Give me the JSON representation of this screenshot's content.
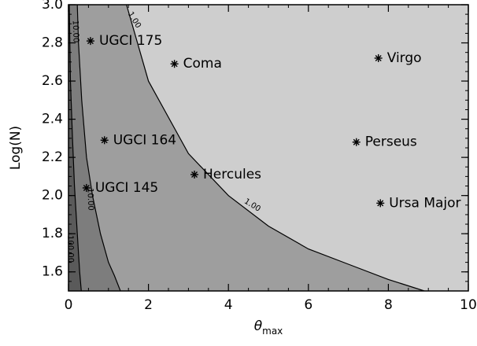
{
  "chart_data": {
    "type": "contour",
    "xlabel_symbol": "θ",
    "xlabel_subscript": "max",
    "ylabel": "Log(N)",
    "xlim": [
      0,
      10
    ],
    "ylim": [
      1.5,
      3.0
    ],
    "xticks": [
      "0",
      "2",
      "4",
      "6",
      "8",
      "10"
    ],
    "yticks": [
      "1.6",
      "1.8",
      "2.0",
      "2.2",
      "2.4",
      "2.6",
      "2.8",
      "3.0"
    ],
    "regions": [
      {
        "name": "darkest",
        "color": "#5a5a5a"
      },
      {
        "name": "dark",
        "color": "#7d7d7d"
      },
      {
        "name": "medium",
        "color": "#9e9e9e"
      },
      {
        "name": "light",
        "color": "#cecece"
      }
    ],
    "contours": [
      {
        "label": "1.00",
        "points": [
          [
            1.45,
            3.0
          ],
          [
            2.0,
            2.6
          ],
          [
            3.0,
            2.22
          ],
          [
            4.0,
            2.0
          ],
          [
            5.0,
            1.84
          ],
          [
            6.0,
            1.72
          ],
          [
            7.0,
            1.64
          ],
          [
            8.0,
            1.56
          ],
          [
            8.9,
            1.5
          ]
        ]
      },
      {
        "label": "10.00",
        "points": [
          [
            0.22,
            3.0
          ],
          [
            0.25,
            2.8
          ],
          [
            0.33,
            2.5
          ],
          [
            0.45,
            2.2
          ],
          [
            0.6,
            2.0
          ],
          [
            0.8,
            1.8
          ],
          [
            1.0,
            1.65
          ],
          [
            1.15,
            1.58
          ],
          [
            1.3,
            1.5
          ]
        ]
      },
      {
        "label": "100.00",
        "points": [
          [
            0.02,
            3.0
          ],
          [
            0.05,
            2.6
          ],
          [
            0.1,
            2.3
          ],
          [
            0.15,
            2.05
          ],
          [
            0.22,
            1.8
          ],
          [
            0.28,
            1.6
          ],
          [
            0.32,
            1.5
          ]
        ]
      }
    ],
    "contour_labels": [
      {
        "text": "1.00",
        "x": 1.65,
        "y": 2.92,
        "angle": 58
      },
      {
        "text": "1.00",
        "x": 4.6,
        "y": 1.95,
        "angle": 32
      },
      {
        "text": "10.00",
        "x": 0.55,
        "y": 1.98,
        "angle": 88
      },
      {
        "text": "10.00",
        "x": 0.18,
        "y": 2.86,
        "angle": 88
      },
      {
        "text": "100.00",
        "x": 0.05,
        "y": 1.72,
        "angle": 89
      }
    ],
    "points": [
      {
        "label": "UGCI 175",
        "x": 0.55,
        "y": 2.81
      },
      {
        "label": "Coma",
        "x": 2.65,
        "y": 2.69
      },
      {
        "label": "Virgo",
        "x": 7.75,
        "y": 2.72
      },
      {
        "label": "UGCI 164",
        "x": 0.9,
        "y": 2.29
      },
      {
        "label": "Perseus",
        "x": 7.2,
        "y": 2.28
      },
      {
        "label": "Hercules",
        "x": 3.15,
        "y": 2.11
      },
      {
        "label": "UGCI 145",
        "x": 0.45,
        "y": 2.04
      },
      {
        "label": "Ursa Major",
        "x": 7.8,
        "y": 1.96
      }
    ]
  }
}
